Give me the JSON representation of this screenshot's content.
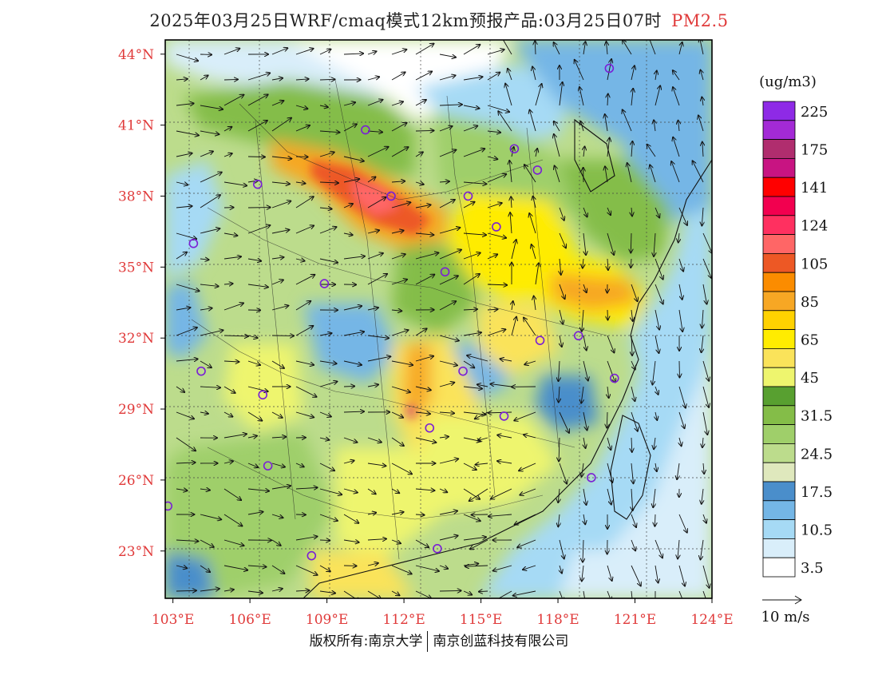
{
  "title": {
    "main": "2025年03月25日WRF/cmaq模式12km预报产品:03月25日07时",
    "variable": "PM2.5",
    "variable_color": "#e03a3a"
  },
  "map": {
    "lon_range": [
      102.7,
      124.0
    ],
    "lat_range": [
      21.0,
      44.6
    ],
    "lat_labels": [
      "44°N",
      "41°N",
      "38°N",
      "35°N",
      "32°N",
      "29°N",
      "26°N",
      "23°N"
    ],
    "lat_values": [
      44,
      41,
      38,
      35,
      32,
      29,
      26,
      23
    ],
    "lon_labels": [
      "103°E",
      "106°E",
      "109°E",
      "112°E",
      "115°E",
      "118°E",
      "121°E",
      "124°E"
    ],
    "lon_values": [
      103,
      106,
      109,
      112,
      115,
      118,
      121,
      124
    ],
    "label_color": "#e03a3a",
    "cities": [
      [
        120.0,
        43.4
      ],
      [
        110.5,
        40.8
      ],
      [
        116.3,
        40.0
      ],
      [
        117.2,
        39.1
      ],
      [
        111.5,
        38.0
      ],
      [
        114.5,
        38.0
      ],
      [
        106.3,
        38.5
      ],
      [
        103.8,
        36.0
      ],
      [
        115.6,
        36.7
      ],
      [
        113.6,
        34.8
      ],
      [
        108.9,
        34.3
      ],
      [
        117.3,
        31.9
      ],
      [
        118.8,
        32.1
      ],
      [
        120.2,
        30.3
      ],
      [
        114.3,
        30.6
      ],
      [
        113.0,
        28.2
      ],
      [
        115.9,
        28.7
      ],
      [
        119.3,
        26.1
      ],
      [
        104.1,
        30.6
      ],
      [
        106.5,
        29.6
      ],
      [
        106.7,
        26.6
      ],
      [
        102.8,
        24.9
      ],
      [
        108.4,
        22.8
      ],
      [
        113.3,
        23.1
      ]
    ]
  },
  "legend": {
    "unit": "(ug/m3)",
    "bins": [
      {
        "color": "#ffffff",
        "label": "3.5"
      },
      {
        "color": "#d9eefa",
        "label": ""
      },
      {
        "color": "#a6daf5",
        "label": "10.5"
      },
      {
        "color": "#74b6e6",
        "label": ""
      },
      {
        "color": "#4a8ecb",
        "label": "17.5"
      },
      {
        "color": "#dfe8bd",
        "label": ""
      },
      {
        "color": "#bcdc8c",
        "label": "24.5"
      },
      {
        "color": "#9fcf6a",
        "label": ""
      },
      {
        "color": "#84bd48",
        "label": "31.5"
      },
      {
        "color": "#58a030",
        "label": ""
      },
      {
        "color": "#eef56e",
        "label": "45"
      },
      {
        "color": "#fae35a",
        "label": ""
      },
      {
        "color": "#ffec00",
        "label": "65"
      },
      {
        "color": "#ffd200",
        "label": ""
      },
      {
        "color": "#f7a724",
        "label": "85"
      },
      {
        "color": "#fb8c00",
        "label": ""
      },
      {
        "color": "#ed5825",
        "label": "105"
      },
      {
        "color": "#ff6666",
        "label": ""
      },
      {
        "color": "#ff3060",
        "label": "124"
      },
      {
        "color": "#f2004f",
        "label": ""
      },
      {
        "color": "#ff0000",
        "label": "141"
      },
      {
        "color": "#c81482",
        "label": ""
      },
      {
        "color": "#b02d6e",
        "label": "175"
      },
      {
        "color": "#a32ad6",
        "label": ""
      },
      {
        "color": "#8e2ae6",
        "label": "225"
      }
    ],
    "wind_ref_label": "10 m/s"
  },
  "copyright": {
    "left": "版权所有:南京大学",
    "right": "南京创蓝科技有限公司"
  }
}
